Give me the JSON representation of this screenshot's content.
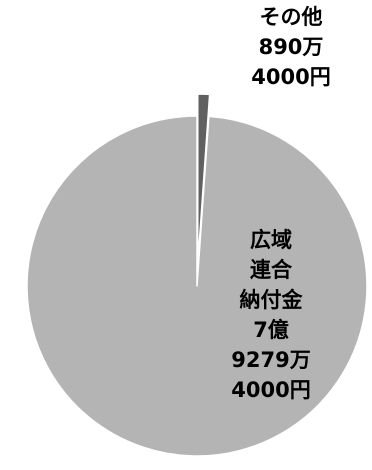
{
  "chart_data": {
    "type": "pie",
    "title": "",
    "start_angle_deg": 0,
    "direction": "clockwise",
    "slices": [
      {
        "name": "その他",
        "value": 8904000,
        "label_lines": [
          "その他",
          "890万",
          "4000円"
        ],
        "color": "#606060"
      },
      {
        "name": "広域連合納付金",
        "value": 792794000,
        "label_lines": [
          "広域",
          "連合",
          "納付金",
          "7億",
          "9279万",
          "4000円"
        ],
        "color": "#b4b4b4"
      }
    ]
  }
}
